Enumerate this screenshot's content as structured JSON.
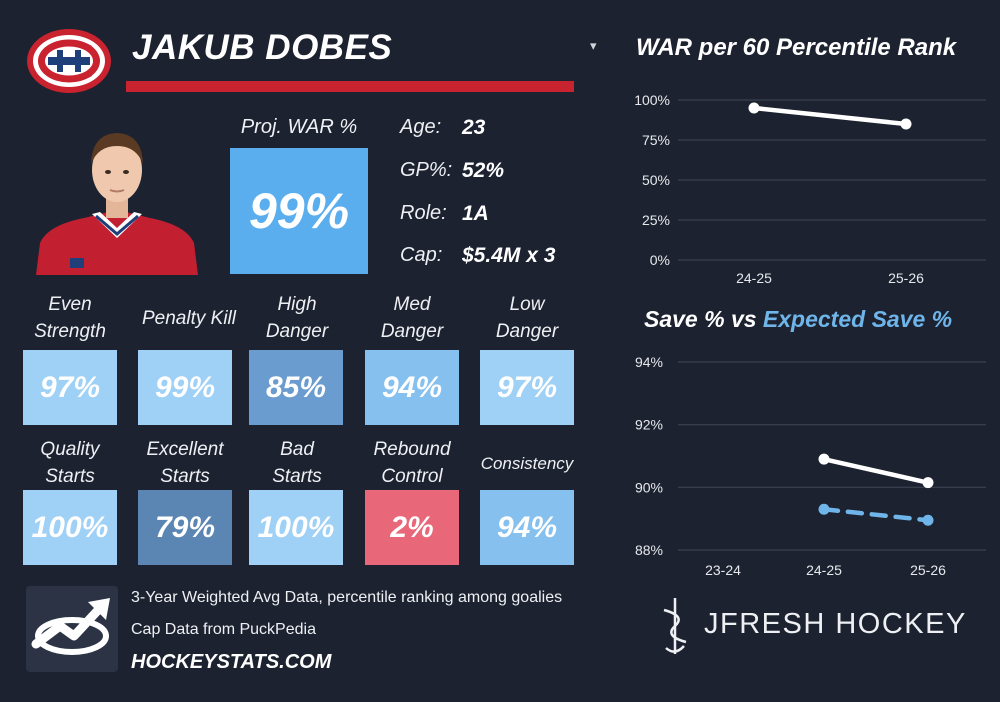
{
  "header": {
    "player_name": "JAKUB DOBES"
  },
  "proj_war": {
    "label": "Proj. WAR %",
    "value": "99%"
  },
  "info": [
    {
      "label": "Age:",
      "value": "23"
    },
    {
      "label": "GP%:",
      "value": "52%"
    },
    {
      "label": "Role:",
      "value": "1A"
    },
    {
      "label": "Cap:",
      "value": "$5.4M x 3"
    }
  ],
  "stats_row1": [
    {
      "line1": "Even",
      "line2": "Strength",
      "value": "97%",
      "color": "#9fd0f5"
    },
    {
      "line1": "Penalty Kill",
      "line2": "",
      "value": "99%",
      "color": "#9fd0f5"
    },
    {
      "line1": "High",
      "line2": "Danger",
      "value": "85%",
      "color": "#6a9ccf"
    },
    {
      "line1": "Med",
      "line2": "Danger",
      "value": "94%",
      "color": "#86c0ee"
    },
    {
      "line1": "Low",
      "line2": "Danger",
      "value": "97%",
      "color": "#9fd0f5"
    }
  ],
  "stats_row2": [
    {
      "line1": "Quality",
      "line2": "Starts",
      "value": "100%",
      "color": "#9fd0f5"
    },
    {
      "line1": "Excellent",
      "line2": "Starts",
      "value": "79%",
      "color": "#5b86b3"
    },
    {
      "line1": "Bad",
      "line2": "Starts",
      "value": "100%",
      "color": "#9fd0f5"
    },
    {
      "line1": "Rebound",
      "line2": "Control",
      "value": "2%",
      "color": "#e8687a"
    },
    {
      "line1": "Consistency",
      "line2": "",
      "value": "94%",
      "color": "#86c0ee"
    }
  ],
  "footer": {
    "note_1": "3-Year Weighted Avg Data, percentile ranking among goalies",
    "note_2": "Cap Data from PuckPedia",
    "site": "HOCKEYSTATS.COM"
  },
  "brand": {
    "name": "JFRESH HOCKEY"
  },
  "colors": {
    "background": "#1c2230",
    "accent_red": "#c8232e",
    "expected_blue": "#6fb5ea"
  },
  "icons": [
    "canadiens-logo-icon",
    "chevron-down-icon",
    "trend-arrow-icon",
    "jfresh-logo-icon"
  ],
  "chart_data": [
    {
      "type": "line",
      "title": "WAR per 60 Percentile Rank",
      "categories": [
        "24-25",
        "25-26"
      ],
      "series": [
        {
          "values": [
            95,
            85
          ],
          "color": "#ffffff",
          "style": "solid"
        }
      ],
      "ylim": [
        0,
        100
      ],
      "yticks": [
        "0%",
        "25%",
        "50%",
        "75%",
        "100%"
      ],
      "ytick_values": [
        0,
        25,
        50,
        75,
        100
      ],
      "grid": true
    },
    {
      "type": "line",
      "title_part1": "Save % vs ",
      "title_part2": "Expected Save %",
      "categories": [
        "23-24",
        "24-25",
        "25-26"
      ],
      "series": [
        {
          "name": "Save %",
          "values": [
            null,
            90.9,
            90.15
          ],
          "color": "#ffffff",
          "style": "solid"
        },
        {
          "name": "Expected Save %",
          "values": [
            null,
            89.3,
            88.95
          ],
          "color": "#6fb5ea",
          "style": "dashed"
        }
      ],
      "ylim": [
        88,
        94
      ],
      "yticks": [
        "88%",
        "90%",
        "92%",
        "94%"
      ],
      "ytick_values": [
        88,
        90,
        92,
        94
      ],
      "grid": true
    }
  ]
}
